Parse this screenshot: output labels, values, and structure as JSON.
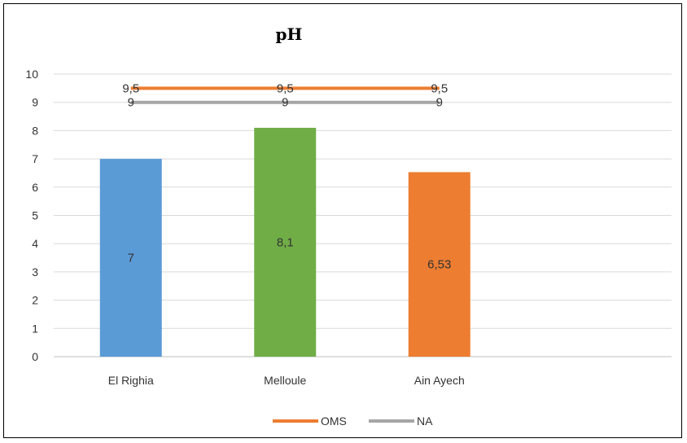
{
  "chart_data": {
    "type": "bar",
    "title": "pH",
    "xlabel": "",
    "ylabel": "",
    "ylim": [
      0,
      10
    ],
    "yticks": [
      "0",
      "1",
      "2",
      "3",
      "4",
      "5",
      "6",
      "7",
      "8",
      "9",
      "10"
    ],
    "grid": true,
    "legend_position": "bottom",
    "categories": [
      "El Righia",
      "Melloule",
      "Ain Ayech"
    ],
    "values": [
      7,
      8.1,
      6.53
    ],
    "value_labels": [
      "7",
      "8,1",
      "6,53"
    ],
    "bar_colors": [
      "#5b9bd5",
      "#70ad47",
      "#ed7d31"
    ],
    "series": [
      {
        "name": "OMS",
        "type": "line",
        "values": [
          9.5,
          9.5,
          9.5
        ],
        "labels": [
          "9,5",
          "9,5",
          "9,5"
        ],
        "color": "#ed7d31"
      },
      {
        "name": "NA",
        "type": "line",
        "values": [
          9,
          9,
          9
        ],
        "labels": [
          "9",
          "9",
          "9"
        ],
        "color": "#a5a5a5"
      }
    ]
  }
}
